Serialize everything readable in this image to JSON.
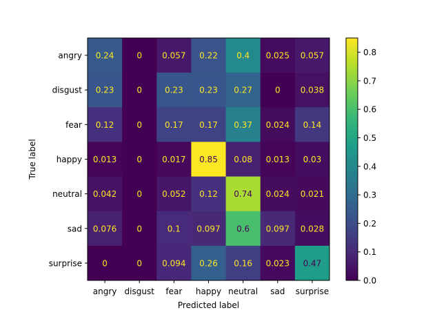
{
  "chart_data": {
    "type": "heatmap",
    "xlabel": "Predicted label",
    "ylabel": "True label",
    "x_categories": [
      "angry",
      "disgust",
      "fear",
      "happy",
      "neutral",
      "sad",
      "surprise"
    ],
    "y_categories": [
      "angry",
      "disgust",
      "fear",
      "happy",
      "neutral",
      "sad",
      "surprise"
    ],
    "values": [
      [
        0.24,
        0,
        0.057,
        0.22,
        0.4,
        0.025,
        0.057
      ],
      [
        0.23,
        0,
        0.23,
        0.23,
        0.27,
        0,
        0.038
      ],
      [
        0.12,
        0,
        0.17,
        0.17,
        0.37,
        0.024,
        0.14
      ],
      [
        0.013,
        0,
        0.017,
        0.85,
        0.08,
        0.013,
        0.03
      ],
      [
        0.042,
        0,
        0.052,
        0.12,
        0.74,
        0.024,
        0.021
      ],
      [
        0.076,
        0,
        0.1,
        0.097,
        0.6,
        0.097,
        0.028
      ],
      [
        0,
        0,
        0.094,
        0.26,
        0.16,
        0.023,
        0.47
      ]
    ],
    "colorbar": {
      "colormap": "viridis",
      "range": [
        0,
        0.85
      ],
      "ticks": [
        "0.0",
        "0.1",
        "0.2",
        "0.3",
        "0.4",
        "0.5",
        "0.6",
        "0.7",
        "0.8"
      ]
    }
  }
}
